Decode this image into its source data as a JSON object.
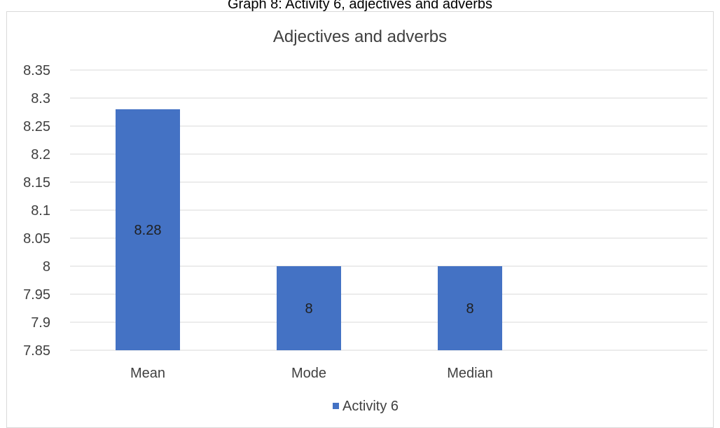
{
  "caption": "Graph 8: Activity 6, adjectives and adverbs",
  "chart_data": {
    "type": "bar",
    "title": "Adjectives and adverbs",
    "categories": [
      "Mean",
      "Mode",
      "Median"
    ],
    "series": [
      {
        "name": "Activity 6",
        "values": [
          8.28,
          8,
          8
        ],
        "data_labels": [
          "8.28",
          "8",
          "8"
        ]
      }
    ],
    "ylim": [
      7.85,
      8.35
    ],
    "yticks": [
      7.85,
      7.9,
      7.95,
      8,
      8.05,
      8.1,
      8.15,
      8.2,
      8.25,
      8.3,
      8.35
    ],
    "ytick_labels": [
      "7.85",
      "7.9",
      "7.95",
      "8",
      "8.05",
      "8.1",
      "8.15",
      "8.2",
      "8.25",
      "8.3",
      "8.35"
    ],
    "xlabel": "",
    "ylabel": "",
    "grid": true,
    "legend": "bottom",
    "colors": {
      "bar": "#4472c4",
      "grid": "#d9d9d9",
      "text": "#404040",
      "label": "#1f1f1f"
    }
  }
}
